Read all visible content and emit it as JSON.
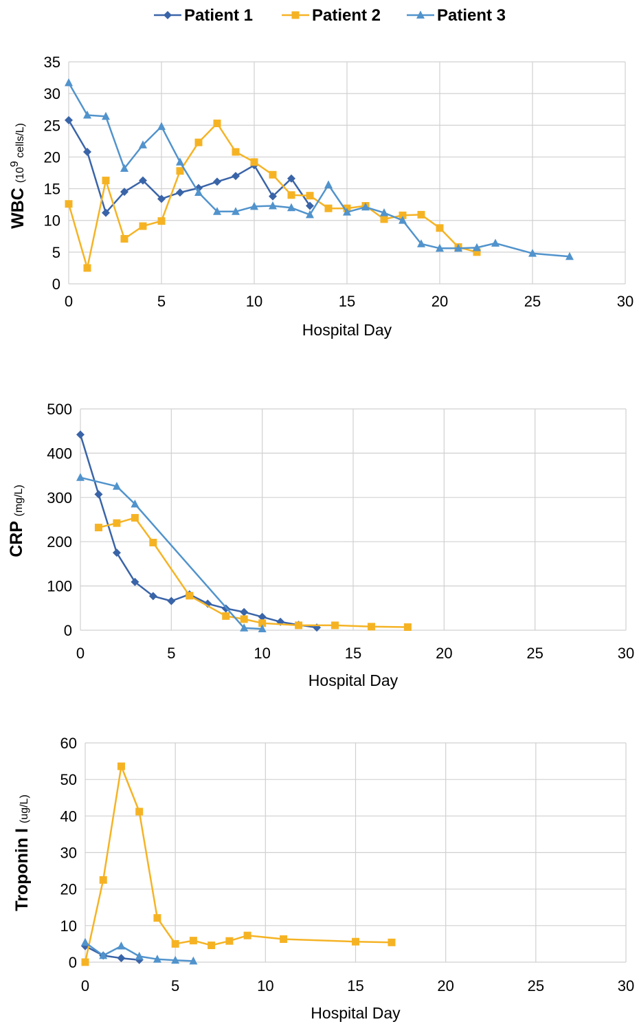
{
  "legend": {
    "items": [
      {
        "name": "Patient 1",
        "color": "#3A64A8",
        "marker": "diamond"
      },
      {
        "name": "Patient 2",
        "color": "#F5B324",
        "marker": "square"
      },
      {
        "name": "Patient 3",
        "color": "#5193CC",
        "marker": "triangle"
      }
    ],
    "placement": "top-center"
  },
  "chart_data": [
    {
      "type": "line",
      "title": "",
      "xlabel": "Hospital Day",
      "ylabel": "WBC",
      "ylabel_unit_base": "(10",
      "ylabel_unit_sup": "9",
      "ylabel_unit_rest": " cells/L)",
      "xlim": [
        0,
        30
      ],
      "ylim": [
        0,
        35
      ],
      "xticks": [
        0,
        5,
        10,
        15,
        20,
        25,
        30
      ],
      "yticks": [
        0,
        5,
        10,
        15,
        20,
        25,
        30,
        35
      ],
      "grid": true,
      "series": [
        {
          "name": "Patient 1",
          "x": [
            0,
            1,
            2,
            3,
            4,
            5,
            6,
            7,
            8,
            9,
            10,
            11,
            12,
            13
          ],
          "y": [
            25.8,
            20.8,
            11.2,
            14.5,
            16.3,
            13.4,
            14.4,
            15.1,
            16.1,
            17.0,
            18.7,
            13.8,
            16.6,
            12.3
          ]
        },
        {
          "name": "Patient 2",
          "x": [
            0,
            1,
            2,
            3,
            4,
            5,
            6,
            7,
            8,
            9,
            10,
            11,
            12,
            13,
            14,
            15,
            16,
            17,
            18,
            19,
            20,
            21,
            22
          ],
          "y": [
            12.6,
            2.5,
            16.3,
            7.1,
            9.1,
            9.9,
            17.8,
            22.3,
            25.3,
            20.8,
            19.2,
            17.2,
            14.0,
            13.9,
            11.9,
            11.9,
            12.3,
            10.2,
            10.8,
            10.9,
            8.8,
            5.8,
            5.0
          ]
        },
        {
          "name": "Patient 3",
          "x": [
            0,
            1,
            2,
            3,
            4,
            5,
            6,
            7,
            8,
            9,
            10,
            11,
            12,
            13,
            14,
            15,
            16,
            17,
            18,
            19,
            20,
            21,
            22,
            23,
            25,
            27
          ],
          "y": [
            31.7,
            26.6,
            26.4,
            18.2,
            21.9,
            24.8,
            19.2,
            14.4,
            11.4,
            11.4,
            12.2,
            12.3,
            12.0,
            10.9,
            15.6,
            11.3,
            12.1,
            11.2,
            10.0,
            6.3,
            5.6,
            5.6,
            5.7,
            6.4,
            4.8,
            4.3
          ]
        }
      ]
    },
    {
      "type": "line",
      "title": "",
      "xlabel": "Hospital Day",
      "ylabel": "CRP",
      "ylabel_unit": "(mg/L)",
      "xlim": [
        0,
        30
      ],
      "ylim": [
        0,
        500
      ],
      "xticks": [
        0,
        5,
        10,
        15,
        20,
        25,
        30
      ],
      "yticks": [
        0,
        100,
        200,
        300,
        400,
        500
      ],
      "grid": true,
      "series": [
        {
          "name": "Patient 1",
          "x": [
            0,
            1,
            2,
            3,
            4,
            5,
            6,
            7,
            8,
            9,
            10,
            11,
            12,
            13
          ],
          "y": [
            442,
            307,
            175,
            109,
            77,
            66,
            81,
            60,
            49,
            41,
            30,
            19,
            12,
            6
          ]
        },
        {
          "name": "Patient 2",
          "x": [
            1,
            2,
            3,
            4,
            6,
            8,
            9,
            10,
            12,
            14,
            16,
            18
          ],
          "y": [
            232,
            242,
            254,
            198,
            78,
            32,
            25,
            16,
            11,
            11,
            8,
            7
          ]
        },
        {
          "name": "Patient 3",
          "x": [
            0,
            2,
            3,
            9,
            10
          ],
          "y": [
            345,
            325,
            285,
            5,
            3
          ]
        }
      ]
    },
    {
      "type": "line",
      "title": "",
      "xlabel": "Hospital Day",
      "ylabel": "Troponin I",
      "ylabel_unit": "(ug/L)",
      "xlim": [
        0,
        30
      ],
      "ylim": [
        0,
        60
      ],
      "xticks": [
        0,
        5,
        10,
        15,
        20,
        25,
        30
      ],
      "yticks": [
        0,
        10,
        20,
        30,
        40,
        50,
        60
      ],
      "grid": true,
      "series": [
        {
          "name": "Patient 1",
          "x": [
            0,
            1,
            2,
            3
          ],
          "y": [
            4.4,
            1.8,
            1.1,
            0.6
          ]
        },
        {
          "name": "Patient 2",
          "x": [
            0,
            1,
            2,
            3,
            4,
            5,
            6,
            7,
            8,
            9,
            11,
            15,
            17
          ],
          "y": [
            0,
            22.5,
            53.6,
            41.2,
            12.1,
            5.0,
            5.9,
            4.6,
            5.8,
            7.3,
            6.3,
            5.6,
            5.4
          ]
        },
        {
          "name": "Patient 3",
          "x": [
            0,
            1,
            2,
            3,
            4,
            5,
            6
          ],
          "y": [
            5.4,
            1.8,
            4.4,
            1.6,
            0.8,
            0.5,
            0.3
          ]
        }
      ]
    }
  ]
}
